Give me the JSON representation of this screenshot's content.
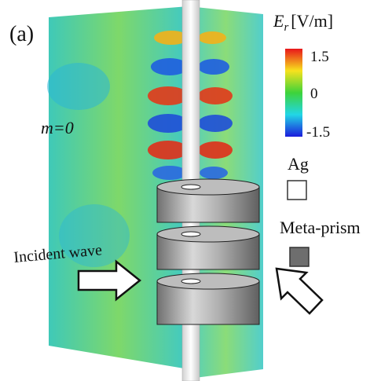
{
  "panel_label": "(a)",
  "colorbar": {
    "symbol": "E",
    "subscript": "r",
    "unit": "[V/m]",
    "ticks": [
      "1.5",
      "0",
      "-1.5"
    ]
  },
  "mode_label": "m=0",
  "legend": [
    {
      "label": "Ag"
    },
    {
      "label": "Meta-prism"
    }
  ],
  "annotation": "Incident wave"
}
